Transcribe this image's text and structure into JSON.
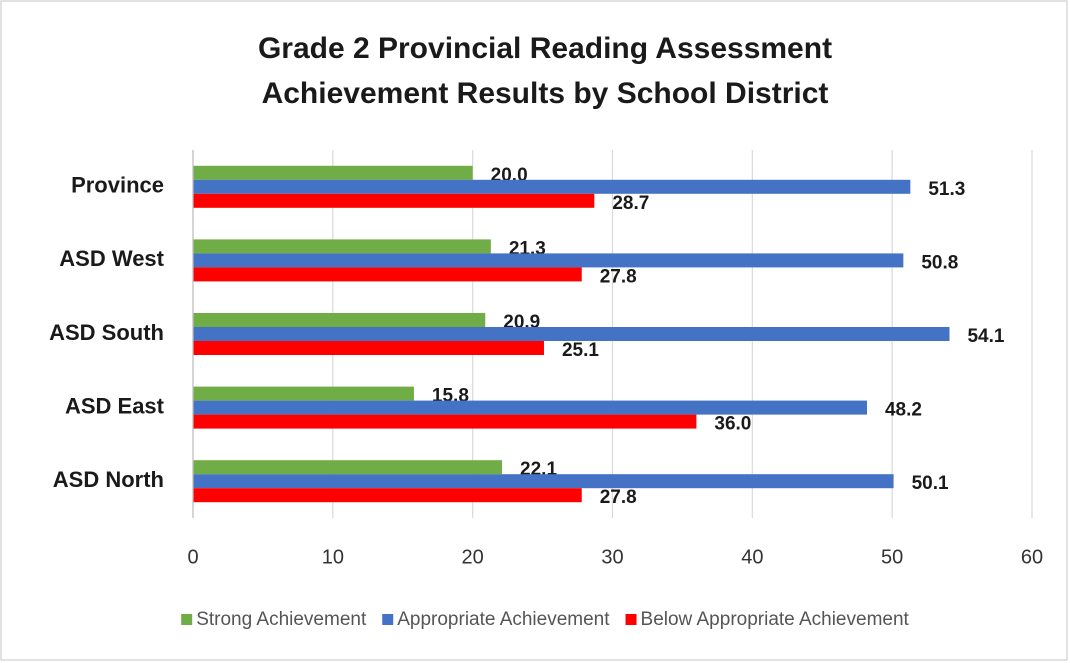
{
  "chart_data": {
    "type": "bar",
    "orientation": "horizontal",
    "title": [
      "Grade 2 Provincial Reading Assessment",
      "Achievement Results by School District"
    ],
    "categories": [
      "Province",
      "ASD West",
      "ASD South",
      "ASD East",
      "ASD North"
    ],
    "series": [
      {
        "name": "Strong Achievement",
        "color": "#70ad47",
        "values": [
          20.0,
          21.3,
          20.9,
          15.8,
          22.1
        ],
        "value_labels": [
          "20.0",
          "21.3",
          "20.9",
          "15.8",
          "22.1"
        ]
      },
      {
        "name": "Appropriate Achievement",
        "color": "#4472c4",
        "values": [
          51.3,
          50.8,
          54.1,
          48.2,
          50.1
        ],
        "value_labels": [
          "51.3",
          "50.8",
          "54.1",
          "48.2",
          "50.1"
        ]
      },
      {
        "name": "Below Appropriate Achievement",
        "color": "#ff0000",
        "values": [
          28.7,
          27.8,
          25.1,
          36.0,
          27.8
        ],
        "value_labels": [
          "28.7",
          "27.8",
          "25.1",
          "36.0",
          "27.8"
        ]
      }
    ],
    "xlim": [
      0,
      60
    ],
    "xticks": [
      0,
      10,
      20,
      30,
      40,
      50,
      60
    ],
    "grid": true,
    "legend": "bottom"
  }
}
